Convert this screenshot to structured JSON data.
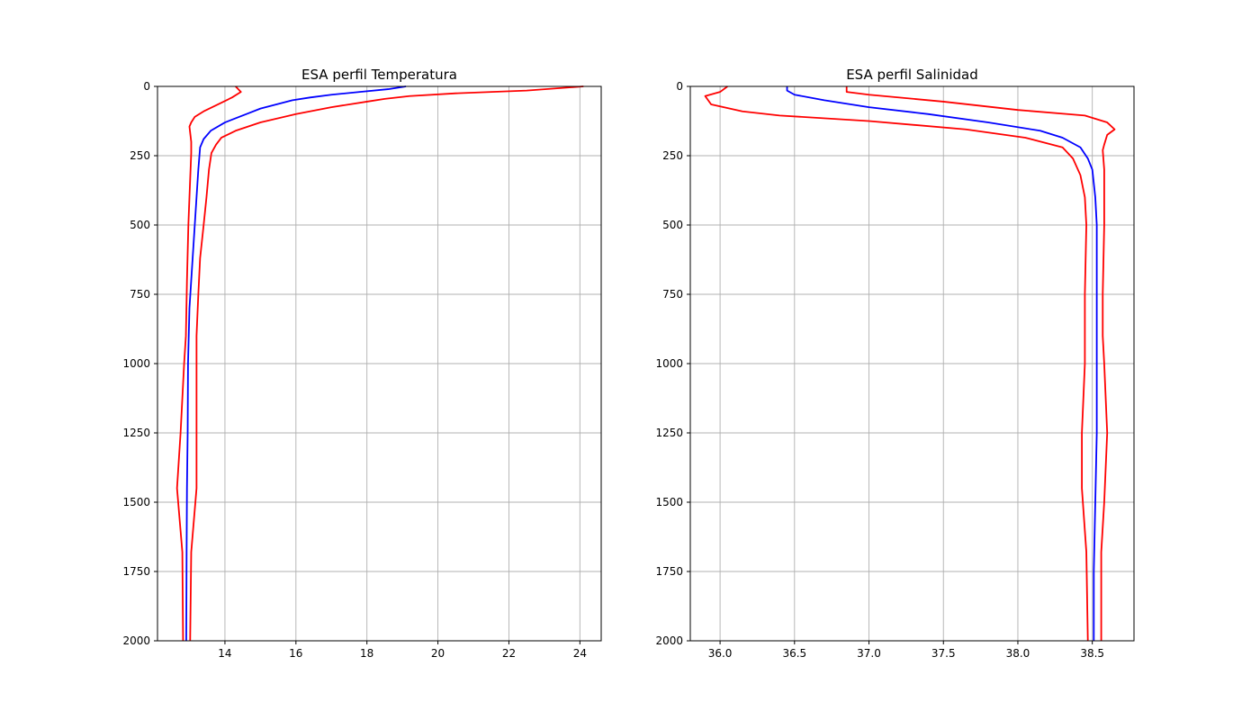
{
  "chart_data": [
    {
      "type": "line",
      "title": "ESA perfil Temperatura",
      "xlabel": "",
      "ylabel": "",
      "xlim": [
        12.1,
        24.6
      ],
      "ylim": [
        2000,
        0
      ],
      "y_inverted": true,
      "grid": true,
      "xticks": [
        14,
        16,
        18,
        20,
        22,
        24
      ],
      "xtick_labels": [
        "14",
        "16",
        "18",
        "20",
        "22",
        "24"
      ],
      "yticks": [
        0,
        250,
        500,
        750,
        1000,
        1250,
        1500,
        1750,
        2000
      ],
      "ytick_labels": [
        "0",
        "250",
        "500",
        "750",
        "1000",
        "1250",
        "1500",
        "1750",
        "2000"
      ],
      "series": [
        {
          "color": "#0000ff",
          "points": [
            [
              19.1,
              0
            ],
            [
              18.6,
              10
            ],
            [
              17.8,
              20
            ],
            [
              17.0,
              30
            ],
            [
              16.4,
              40
            ],
            [
              15.9,
              50
            ],
            [
              15.0,
              80
            ],
            [
              14.6,
              100
            ],
            [
              14.0,
              130
            ],
            [
              13.6,
              160
            ],
            [
              13.4,
              190
            ],
            [
              13.3,
              220
            ],
            [
              13.25,
              300
            ],
            [
              13.2,
              400
            ],
            [
              13.15,
              500
            ],
            [
              13.1,
              600
            ],
            [
              13.05,
              700
            ],
            [
              13.0,
              800
            ],
            [
              12.98,
              900
            ],
            [
              12.96,
              1000
            ],
            [
              12.95,
              1250
            ],
            [
              12.93,
              1450
            ],
            [
              12.92,
              1680
            ],
            [
              12.91,
              2000
            ]
          ]
        },
        {
          "color": "#ff0000",
          "points": [
            [
              24.1,
              0
            ],
            [
              22.5,
              15
            ],
            [
              20.5,
              25
            ],
            [
              19.2,
              35
            ],
            [
              18.5,
              45
            ],
            [
              18.0,
              55
            ],
            [
              17.0,
              75
            ],
            [
              16.0,
              100
            ],
            [
              15.0,
              130
            ],
            [
              14.3,
              160
            ],
            [
              13.9,
              185
            ],
            [
              13.75,
              210
            ],
            [
              13.62,
              240
            ],
            [
              13.55,
              300
            ],
            [
              13.48,
              400
            ],
            [
              13.4,
              500
            ],
            [
              13.3,
              620
            ],
            [
              13.25,
              750
            ],
            [
              13.2,
              900
            ],
            [
              13.2,
              1000
            ],
            [
              13.2,
              1250
            ],
            [
              13.2,
              1450
            ],
            [
              13.05,
              1680
            ],
            [
              13.02,
              2000
            ]
          ]
        },
        {
          "color": "#ff0000",
          "points": [
            [
              14.3,
              0
            ],
            [
              14.45,
              20
            ],
            [
              14.2,
              40
            ],
            [
              13.8,
              65
            ],
            [
              13.4,
              90
            ],
            [
              13.15,
              110
            ],
            [
              13.05,
              130
            ],
            [
              13.0,
              145
            ],
            [
              13.05,
              200
            ],
            [
              13.05,
              240
            ],
            [
              13.0,
              400
            ],
            [
              12.97,
              500
            ],
            [
              12.93,
              700
            ],
            [
              12.9,
              900
            ],
            [
              12.85,
              1000
            ],
            [
              12.75,
              1250
            ],
            [
              12.65,
              1450
            ],
            [
              12.8,
              1680
            ],
            [
              12.82,
              2000
            ]
          ]
        }
      ]
    },
    {
      "type": "line",
      "title": "ESA perfil Salinidad",
      "xlabel": "",
      "ylabel": "",
      "xlim": [
        35.8,
        38.78
      ],
      "ylim": [
        2000,
        0
      ],
      "y_inverted": true,
      "grid": true,
      "xticks": [
        36.0,
        36.5,
        37.0,
        37.5,
        38.0,
        38.5
      ],
      "xtick_labels": [
        "36.0",
        "36.5",
        "37.0",
        "37.5",
        "38.0",
        "38.5"
      ],
      "yticks": [
        0,
        250,
        500,
        750,
        1000,
        1250,
        1500,
        1750,
        2000
      ],
      "ytick_labels": [
        "0",
        "250",
        "500",
        "750",
        "1000",
        "1250",
        "1500",
        "1750",
        "2000"
      ],
      "series": [
        {
          "color": "#0000ff",
          "points": [
            [
              36.45,
              0
            ],
            [
              36.45,
              15
            ],
            [
              36.5,
              30
            ],
            [
              36.7,
              50
            ],
            [
              37.0,
              75
            ],
            [
              37.4,
              100
            ],
            [
              37.8,
              130
            ],
            [
              38.15,
              160
            ],
            [
              38.3,
              185
            ],
            [
              38.42,
              220
            ],
            [
              38.47,
              260
            ],
            [
              38.5,
              300
            ],
            [
              38.52,
              400
            ],
            [
              38.53,
              500
            ],
            [
              38.53,
              750
            ],
            [
              38.53,
              1000
            ],
            [
              38.53,
              1250
            ],
            [
              38.52,
              1500
            ],
            [
              38.51,
              1750
            ],
            [
              38.51,
              2000
            ]
          ]
        },
        {
          "color": "#ff0000",
          "points": [
            [
              36.85,
              0
            ],
            [
              36.85,
              20
            ],
            [
              37.0,
              30
            ],
            [
              37.5,
              55
            ],
            [
              38.0,
              85
            ],
            [
              38.45,
              105
            ],
            [
              38.6,
              130
            ],
            [
              38.65,
              155
            ],
            [
              38.6,
              175
            ],
            [
              38.58,
              210
            ],
            [
              38.57,
              230
            ],
            [
              38.58,
              300
            ],
            [
              38.58,
              400
            ],
            [
              38.58,
              500
            ],
            [
              38.57,
              750
            ],
            [
              38.57,
              900
            ],
            [
              38.58,
              1000
            ],
            [
              38.6,
              1250
            ],
            [
              38.58,
              1500
            ],
            [
              38.56,
              1680
            ],
            [
              38.56,
              2000
            ]
          ]
        },
        {
          "color": "#ff0000",
          "points": [
            [
              36.05,
              0
            ],
            [
              36.0,
              20
            ],
            [
              35.9,
              35
            ],
            [
              35.94,
              65
            ],
            [
              36.15,
              90
            ],
            [
              36.4,
              105
            ],
            [
              37.0,
              125
            ],
            [
              37.65,
              155
            ],
            [
              38.05,
              185
            ],
            [
              38.3,
              220
            ],
            [
              38.37,
              260
            ],
            [
              38.42,
              320
            ],
            [
              38.45,
              400
            ],
            [
              38.46,
              500
            ],
            [
              38.45,
              750
            ],
            [
              38.45,
              1000
            ],
            [
              38.43,
              1250
            ],
            [
              38.43,
              1450
            ],
            [
              38.46,
              1680
            ],
            [
              38.47,
              2000
            ]
          ]
        }
      ]
    }
  ]
}
